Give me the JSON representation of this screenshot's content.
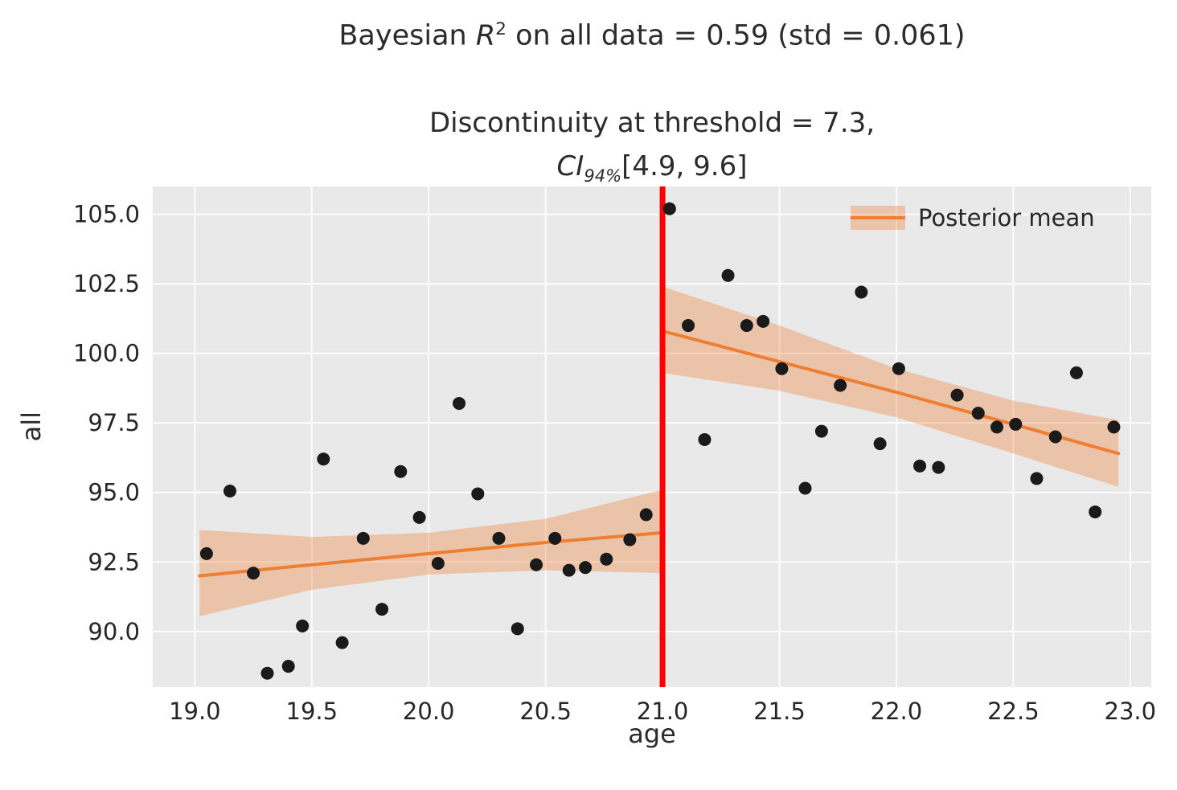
{
  "chart_data": {
    "type": "scatter",
    "title": "Bayesian R² on all data = 0.59 (std = 0.061)",
    "title_parts": {
      "pre": "Bayesian ",
      "var": "R",
      "sup": "2",
      "post": " on all data = 0.59 (std = 0.061)"
    },
    "subtitle_line1": "Discontinuity at threshold = 7.3,",
    "subtitle_parts": {
      "var": "CI",
      "sub": "94%",
      "post": "[4.9, 9.6]"
    },
    "xlabel": "age",
    "ylabel": "all",
    "xlim": [
      18.82,
      23.09
    ],
    "ylim": [
      88.0,
      106.0
    ],
    "xticks": [
      19.0,
      19.5,
      20.0,
      20.5,
      21.0,
      21.5,
      22.0,
      22.5,
      23.0
    ],
    "yticks": [
      90.0,
      92.5,
      95.0,
      97.5,
      100.0,
      102.5,
      105.0
    ],
    "grid": true,
    "legend": [
      "Posterior mean"
    ],
    "legend_position": "upper right",
    "threshold_x": 21.0,
    "points": [
      [
        19.05,
        92.8
      ],
      [
        19.15,
        95.05
      ],
      [
        19.25,
        92.1
      ],
      [
        19.31,
        88.5
      ],
      [
        19.4,
        88.75
      ],
      [
        19.46,
        90.2
      ],
      [
        19.55,
        96.2
      ],
      [
        19.63,
        89.6
      ],
      [
        19.72,
        93.35
      ],
      [
        19.8,
        90.8
      ],
      [
        19.88,
        95.75
      ],
      [
        19.96,
        94.1
      ],
      [
        20.04,
        92.45
      ],
      [
        20.13,
        98.2
      ],
      [
        20.21,
        94.95
      ],
      [
        20.3,
        93.35
      ],
      [
        20.38,
        90.1
      ],
      [
        20.46,
        92.4
      ],
      [
        20.54,
        93.35
      ],
      [
        20.6,
        92.2
      ],
      [
        20.67,
        92.3
      ],
      [
        20.76,
        92.6
      ],
      [
        20.86,
        93.3
      ],
      [
        20.93,
        94.2
      ],
      [
        21.03,
        105.2
      ],
      [
        21.11,
        101.0
      ],
      [
        21.18,
        96.9
      ],
      [
        21.28,
        102.8
      ],
      [
        21.36,
        101.0
      ],
      [
        21.43,
        101.15
      ],
      [
        21.51,
        99.45
      ],
      [
        21.61,
        95.15
      ],
      [
        21.68,
        97.2
      ],
      [
        21.76,
        98.85
      ],
      [
        21.85,
        102.2
      ],
      [
        21.93,
        96.75
      ],
      [
        22.01,
        99.45
      ],
      [
        22.1,
        95.95
      ],
      [
        22.18,
        95.9
      ],
      [
        22.26,
        98.5
      ],
      [
        22.35,
        97.85
      ],
      [
        22.43,
        97.35
      ],
      [
        22.51,
        97.45
      ],
      [
        22.6,
        95.5
      ],
      [
        22.68,
        97.0
      ],
      [
        22.77,
        99.3
      ],
      [
        22.85,
        94.3
      ],
      [
        22.93,
        97.35
      ]
    ],
    "segments": [
      {
        "name": "pre-threshold",
        "x": [
          19.02,
          19.5,
          20.0,
          20.5,
          21.0
        ],
        "mean": [
          92.0,
          92.4,
          92.8,
          93.2,
          93.55
        ],
        "upper": [
          93.65,
          93.4,
          93.55,
          94.05,
          95.1
        ],
        "lower": [
          90.55,
          91.5,
          92.05,
          92.2,
          92.1
        ]
      },
      {
        "name": "post-threshold",
        "x": [
          21.0,
          21.5,
          22.0,
          22.5,
          22.95
        ],
        "mean": [
          100.8,
          99.7,
          98.6,
          97.45,
          96.4
        ],
        "upper": [
          102.4,
          101.0,
          99.45,
          98.3,
          97.6
        ],
        "lower": [
          99.3,
          98.65,
          97.7,
          96.4,
          95.2
        ]
      }
    ],
    "colors": {
      "background": "#e9e9e9",
      "grid": "#ffffff",
      "points": "#1a1a1a",
      "mean_line": "#ee7e32",
      "band": "#ee7e32",
      "band_opacity": 0.35,
      "threshold": "#ff0000",
      "tick_text": "#262626"
    }
  }
}
